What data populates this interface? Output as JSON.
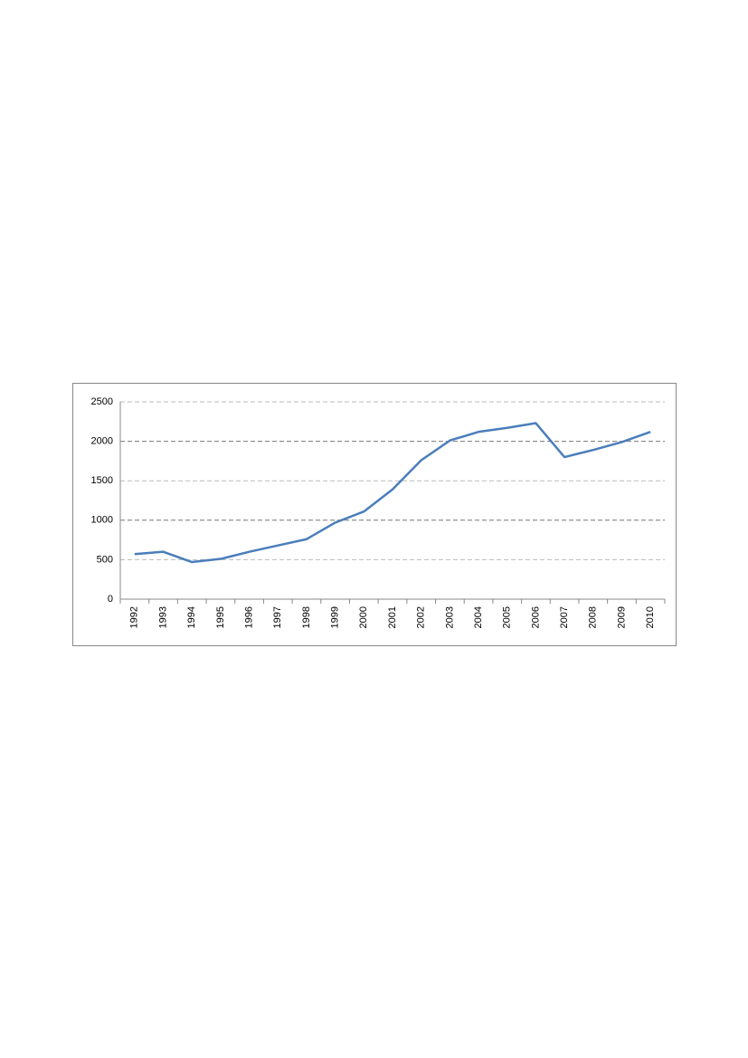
{
  "chart_data": {
    "type": "line",
    "categories": [
      "1992",
      "1993",
      "1994",
      "1995",
      "1996",
      "1997",
      "1998",
      "1999",
      "2000",
      "2001",
      "2002",
      "2003",
      "2004",
      "2005",
      "2006",
      "2007",
      "2008",
      "2009",
      "2010"
    ],
    "values": [
      570,
      600,
      470,
      510,
      600,
      680,
      760,
      970,
      1110,
      1390,
      1760,
      2010,
      2120,
      2170,
      2230,
      1800,
      1890,
      1990,
      2120
    ],
    "color": "#4a7ebb",
    "ylim": [
      0,
      2500
    ],
    "yticks": [
      0,
      500,
      1000,
      1500,
      2000,
      2500
    ],
    "grid": true
  }
}
